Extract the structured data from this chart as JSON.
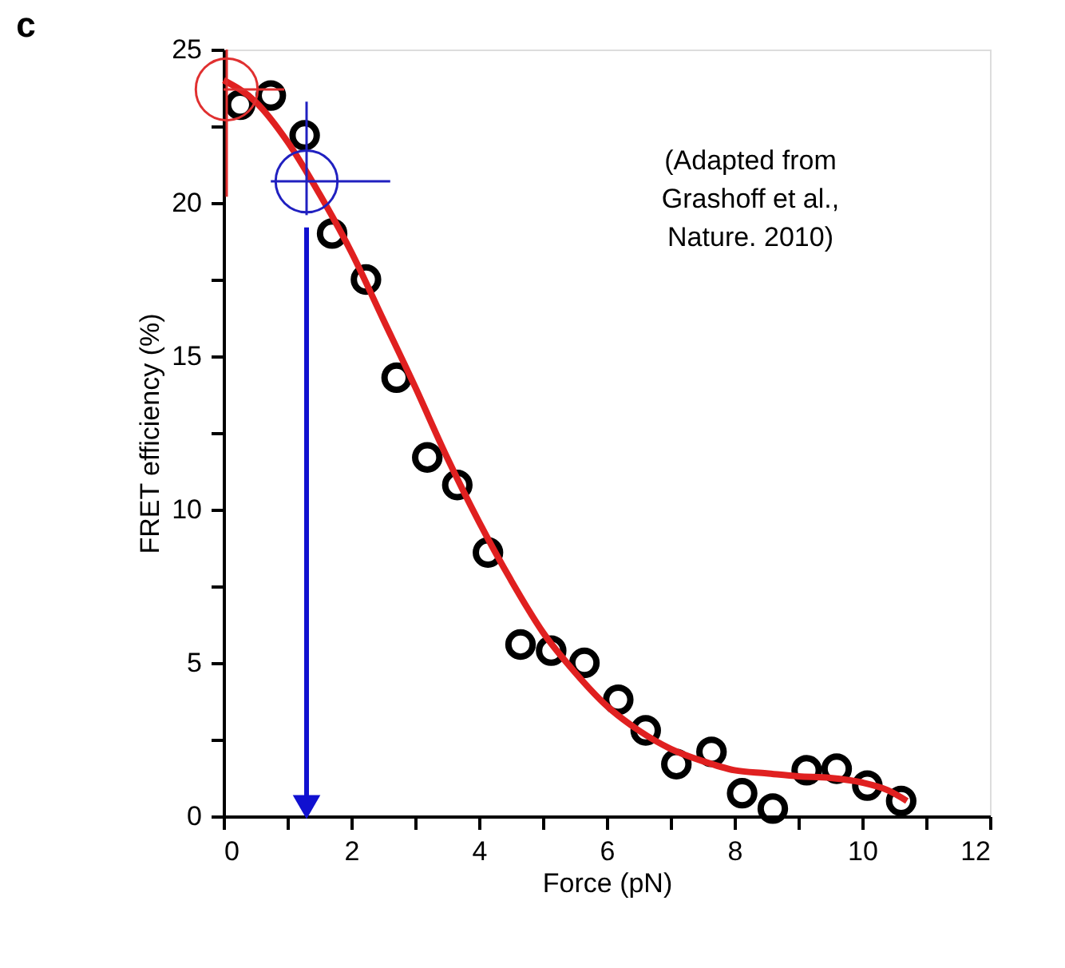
{
  "chart_data": {
    "type": "scatter",
    "title": "c",
    "xlabel": "Force (pN)",
    "ylabel": "FRET efficiency (%)",
    "xlim": [
      0,
      12
    ],
    "ylim": [
      0,
      25
    ],
    "xticks": [
      0,
      {
        "value": 1,
        "label": null
      },
      2,
      {
        "value": 3,
        "label": null
      },
      4,
      {
        "value": 5,
        "label": null
      },
      6,
      {
        "value": 7,
        "label": null
      },
      8,
      {
        "value": 9,
        "label": null
      },
      10,
      {
        "value": 11,
        "label": null
      },
      12
    ],
    "yticks": [
      0,
      {
        "value": 2.5,
        "label": null
      },
      5,
      {
        "value": 7.5,
        "label": null
      },
      10,
      {
        "value": 12.5,
        "label": null
      },
      15,
      {
        "value": 17.5,
        "label": null
      },
      20,
      {
        "value": 22.5,
        "label": null
      },
      25
    ],
    "grid": false,
    "annotations": [
      "(Adapted from\nGrashoff et al.,\nNature. 2010)"
    ],
    "series": [
      {
        "marker": "circle",
        "color": "#000000",
        "x": [
          0.26,
          0.74,
          1.27,
          1.7,
          2.23,
          2.71,
          3.19,
          3.66,
          4.14,
          4.65,
          5.13,
          5.65,
          6.18,
          6.61,
          7.09,
          7.64,
          8.12,
          8.6,
          9.13,
          9.6,
          10.08,
          10.61
        ],
        "values": [
          23.2,
          23.5,
          22.2,
          19.0,
          17.5,
          14.3,
          11.7,
          10.8,
          8.6,
          5.6,
          5.4,
          5.0,
          3.8,
          2.8,
          1.7,
          2.1,
          0.75,
          0.25,
          1.5,
          1.55,
          1.0,
          0.5
        ]
      },
      {
        "type": "line",
        "line_style": "solid",
        "color": "#e02020",
        "x": [
          0,
          0.5,
          1,
          1.5,
          2,
          2.5,
          3,
          3.5,
          4,
          4.5,
          5,
          5.5,
          6,
          6.5,
          7,
          7.5,
          8,
          8.5,
          9,
          9.5,
          10,
          10.4,
          10.7
        ],
        "values": [
          24.0,
          23.3,
          22.0,
          20.3,
          18.4,
          16.2,
          14.0,
          11.7,
          9.6,
          7.7,
          6.0,
          4.7,
          3.6,
          2.8,
          2.2,
          1.8,
          1.5,
          1.4,
          1.3,
          1.25,
          1.1,
          0.85,
          0.5
        ]
      },
      {
        "marker": "circle",
        "color": "#e03030",
        "x": [
          0.05
        ],
        "values": [
          23.7
        ],
        "errors": [
          [
            20.2,
            25
          ]
        ],
        "xerrors": [
          [
            0,
            0.95
          ]
        ]
      },
      {
        "marker": "circle",
        "color": "#2020c0",
        "x": [
          1.3
        ],
        "values": [
          20.7
        ],
        "errors": [
          [
            19.6,
            23.3
          ]
        ],
        "xerrors": [
          [
            0.74,
            2.61
          ]
        ]
      },
      {
        "type": "line",
        "line_style": "solid",
        "color": "#1010d0",
        "x": [
          1.3,
          1.3
        ],
        "values": [
          19.2,
          0.3
        ]
      }
    ]
  }
}
